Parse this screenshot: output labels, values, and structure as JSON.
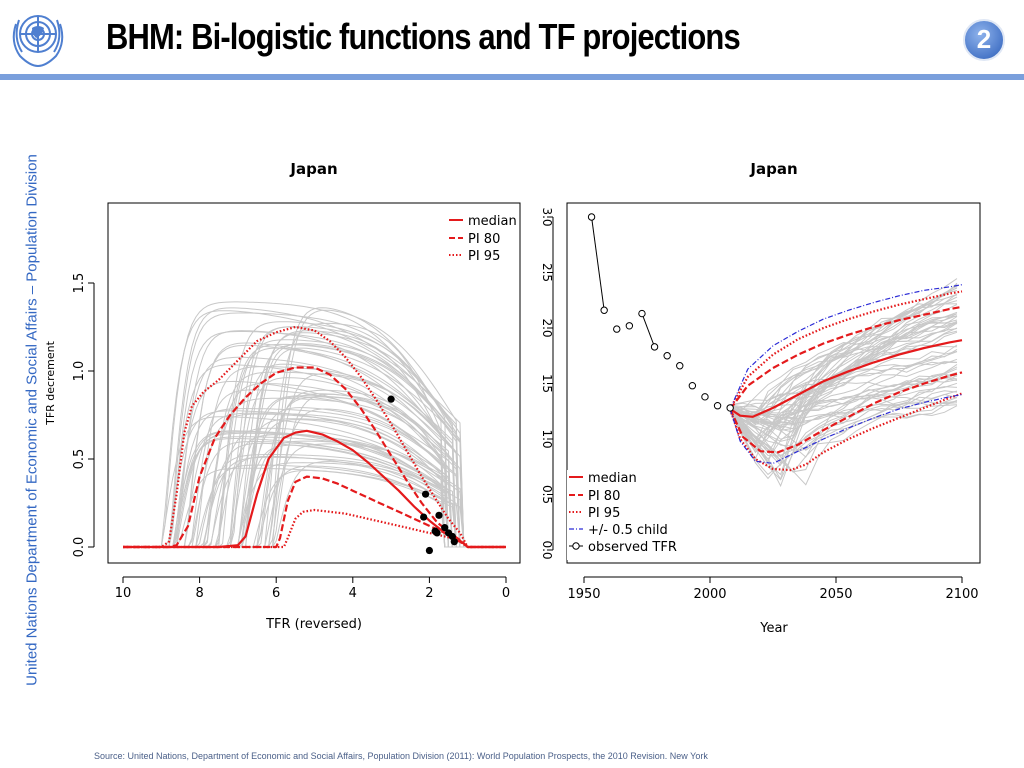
{
  "header": {
    "title": "BHM: Bi-logistic functions and TF projections",
    "slide_number": "2",
    "sidebar_text": "United Nations Department of Economic and Social Affairs – Population Division",
    "logo_icon": "un-emblem-icon"
  },
  "footer": {
    "source": "Source: United Nations, Department of Economic and Social Affairs, Population Division (2011): World Population Prospects, the 2010 Revision. New York"
  },
  "colors": {
    "accent_blue": "#3468c3",
    "rule_blue": "#7a9fdc",
    "median_red": "#e41a1c",
    "trajectory_gray": "#c8c8c8",
    "child_blue": "#2b2bd6"
  },
  "chart_data": [
    {
      "type": "line",
      "title": "Japan",
      "xlabel": "TFR (reversed)",
      "ylabel": "TFR decrement",
      "xlim": [
        10,
        0
      ],
      "ylim": [
        -0.05,
        1.95
      ],
      "xticks": [
        10,
        8,
        6,
        4,
        2,
        0
      ],
      "yticks": [
        0.0,
        0.5,
        1.0,
        1.5
      ],
      "x_reversed": true,
      "grid": false,
      "legend": {
        "position": "top-right",
        "entries": [
          "median",
          "PI 80",
          "PI 95"
        ]
      },
      "series": [
        {
          "name": "median",
          "style": "solid",
          "color": "#e41a1c",
          "x": [
            10,
            7.5,
            7.0,
            6.8,
            6.5,
            6.2,
            5.8,
            5.5,
            5.2,
            4.8,
            4.4,
            4.0,
            3.6,
            3.2,
            2.8,
            2.4,
            2.0,
            1.6,
            1.3,
            1.1,
            1.0,
            0
          ],
          "y": [
            0,
            0,
            0.01,
            0.06,
            0.3,
            0.5,
            0.62,
            0.65,
            0.66,
            0.64,
            0.6,
            0.55,
            0.48,
            0.4,
            0.32,
            0.23,
            0.15,
            0.08,
            0.04,
            0.02,
            0,
            0
          ]
        },
        {
          "name": "PI 80",
          "style": "dashed",
          "color": "#e41a1c",
          "x": [
            10,
            8.8,
            8.6,
            8.3,
            8.0,
            7.6,
            7.2,
            6.8,
            6.4,
            6.0,
            5.5,
            5.0,
            4.6,
            4.2,
            3.8,
            3.4,
            3.0,
            2.6,
            2.2,
            1.8,
            1.4,
            1.2,
            1.1,
            1.0,
            0
          ],
          "y": [
            0,
            0,
            0.01,
            0.12,
            0.4,
            0.62,
            0.75,
            0.85,
            0.93,
            0.99,
            1.02,
            1.02,
            0.98,
            0.9,
            0.79,
            0.66,
            0.52,
            0.38,
            0.25,
            0.14,
            0.07,
            0.04,
            0.02,
            0,
            0
          ]
        },
        {
          "name": "PI 80",
          "style": "dashed",
          "color": "#e41a1c",
          "x": [
            10,
            6.0,
            5.9,
            5.7,
            5.5,
            5.2,
            4.8,
            4.4,
            4.0,
            3.6,
            3.2,
            2.8,
            2.4,
            2.0,
            1.6,
            1.3,
            1.1,
            1.0,
            0
          ],
          "y": [
            0,
            0,
            0.05,
            0.26,
            0.37,
            0.4,
            0.39,
            0.36,
            0.32,
            0.28,
            0.24,
            0.2,
            0.16,
            0.12,
            0.08,
            0.05,
            0.02,
            0,
            0
          ]
        },
        {
          "name": "PI 95",
          "style": "dotted",
          "color": "#e41a1c",
          "x": [
            10,
            9.0,
            8.8,
            8.6,
            8.4,
            8.2,
            7.9,
            7.5,
            7.0,
            6.5,
            6.0,
            5.5,
            5.0,
            4.6,
            4.2,
            3.8,
            3.4,
            3.0,
            2.6,
            2.2,
            1.8,
            1.5,
            1.2,
            1.1,
            1.0,
            0
          ],
          "y": [
            0,
            0,
            0.03,
            0.3,
            0.65,
            0.8,
            0.88,
            0.95,
            1.06,
            1.17,
            1.22,
            1.25,
            1.23,
            1.17,
            1.08,
            0.97,
            0.84,
            0.7,
            0.55,
            0.4,
            0.26,
            0.16,
            0.08,
            0.04,
            0,
            0
          ]
        },
        {
          "name": "PI 95",
          "style": "dotted",
          "color": "#e41a1c",
          "x": [
            10,
            5.8,
            5.7,
            5.5,
            5.3,
            5.0,
            4.6,
            4.2,
            3.8,
            3.4,
            3.0,
            2.6,
            2.2,
            1.8,
            1.4,
            1.2,
            1.0,
            0
          ],
          "y": [
            0,
            0,
            0.05,
            0.16,
            0.2,
            0.21,
            0.2,
            0.19,
            0.17,
            0.15,
            0.13,
            0.11,
            0.09,
            0.07,
            0.05,
            0.03,
            0,
            0
          ]
        }
      ],
      "observed_points": {
        "x": [
          3.0,
          2.1,
          2.15,
          1.75,
          1.85,
          1.6,
          1.5,
          1.8,
          1.4,
          1.35,
          2.0
        ],
        "y": [
          0.84,
          0.3,
          0.17,
          0.18,
          0.09,
          0.11,
          0.08,
          0.08,
          0.06,
          0.03,
          -0.02
        ]
      }
    },
    {
      "type": "line",
      "title": "Japan",
      "xlabel": "Year",
      "ylabel": "",
      "xlim": [
        1945,
        2103
      ],
      "ylim": [
        -0.05,
        3.1
      ],
      "xticks": [
        1950,
        2000,
        2050,
        2100
      ],
      "yticks": [
        0.0,
        0.5,
        1.0,
        1.5,
        2.0,
        2.5,
        3.0
      ],
      "grid": false,
      "legend": {
        "position": "bottom-left",
        "entries": [
          "median",
          "PI 80",
          "PI 95",
          "+/- 0.5 child",
          "observed TFR"
        ]
      },
      "series": [
        {
          "name": "median",
          "style": "solid",
          "color": "#e41a1c",
          "x": [
            2008,
            2012,
            2017,
            2025,
            2035,
            2045,
            2055,
            2065,
            2075,
            2085,
            2095,
            2100
          ],
          "y": [
            1.27,
            1.21,
            1.2,
            1.28,
            1.4,
            1.52,
            1.61,
            1.69,
            1.76,
            1.82,
            1.87,
            1.89
          ]
        },
        {
          "name": "PI 80",
          "style": "dashed",
          "color": "#e41a1c",
          "x": [
            2008,
            2015,
            2025,
            2035,
            2045,
            2055,
            2065,
            2075,
            2085,
            2095,
            2100
          ],
          "y": [
            1.27,
            1.48,
            1.64,
            1.76,
            1.86,
            1.94,
            2.01,
            2.07,
            2.12,
            2.17,
            2.19
          ]
        },
        {
          "name": "PI 80",
          "style": "dashed",
          "color": "#e41a1c",
          "x": [
            2008,
            2013,
            2020,
            2027,
            2035,
            2045,
            2055,
            2065,
            2075,
            2085,
            2095,
            2100
          ],
          "y": [
            1.27,
            1.02,
            0.89,
            0.88,
            0.95,
            1.08,
            1.2,
            1.32,
            1.42,
            1.5,
            1.57,
            1.6
          ]
        },
        {
          "name": "PI 95",
          "style": "dotted",
          "color": "#e41a1c",
          "x": [
            2008,
            2015,
            2025,
            2035,
            2045,
            2055,
            2065,
            2075,
            2085,
            2095,
            2100
          ],
          "y": [
            1.27,
            1.56,
            1.76,
            1.9,
            2.0,
            2.08,
            2.15,
            2.21,
            2.26,
            2.31,
            2.33
          ]
        },
        {
          "name": "PI 95",
          "style": "dotted",
          "color": "#e41a1c",
          "x": [
            2008,
            2012,
            2018,
            2025,
            2032,
            2038,
            2045,
            2055,
            2065,
            2075,
            2085,
            2095,
            2100
          ],
          "y": [
            1.27,
            1.0,
            0.82,
            0.73,
            0.72,
            0.77,
            0.88,
            1.0,
            1.1,
            1.19,
            1.28,
            1.37,
            1.41
          ]
        },
        {
          "name": "+/- 0.5 child",
          "style": "dashdot",
          "color": "#2b2bd6",
          "x": [
            2008,
            2015,
            2025,
            2035,
            2045,
            2055,
            2065,
            2075,
            2085,
            2095,
            2100
          ],
          "y": [
            1.27,
            1.63,
            1.84,
            1.97,
            2.08,
            2.16,
            2.23,
            2.29,
            2.34,
            2.37,
            2.39
          ]
        },
        {
          "name": "+/- 0.5 child",
          "style": "dashdot",
          "color": "#2b2bd6",
          "x": [
            2008,
            2012,
            2018,
            2025,
            2035,
            2045,
            2055,
            2065,
            2075,
            2085,
            2095,
            2100
          ],
          "y": [
            1.27,
            0.98,
            0.8,
            0.78,
            0.89,
            1.0,
            1.1,
            1.19,
            1.27,
            1.33,
            1.38,
            1.4
          ]
        }
      ],
      "observed": {
        "name": "observed TFR",
        "x": [
          1953,
          1958,
          1963,
          1968,
          1973,
          1978,
          1983,
          1988,
          1993,
          1998,
          2003,
          2008
        ],
        "y": [
          3.0,
          2.16,
          1.99,
          2.02,
          2.13,
          1.83,
          1.75,
          1.66,
          1.48,
          1.38,
          1.3,
          1.28
        ]
      }
    }
  ]
}
